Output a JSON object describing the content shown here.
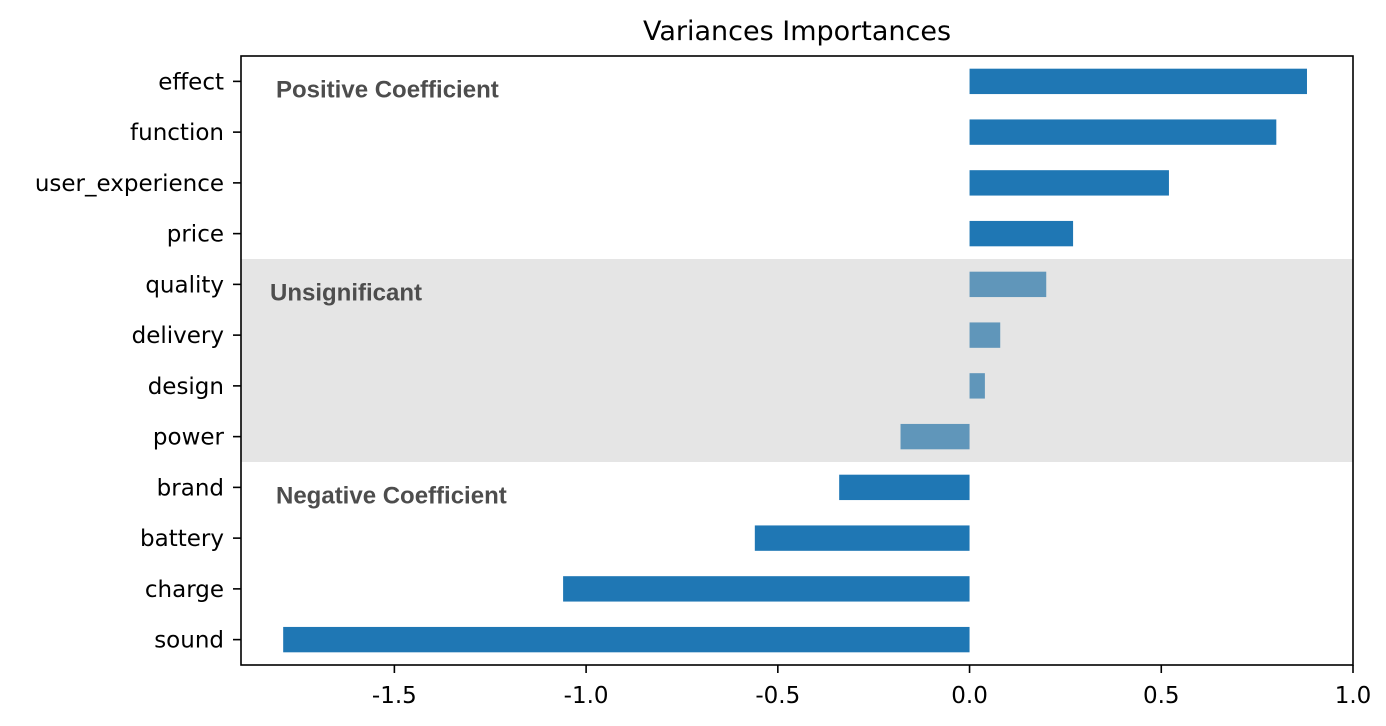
{
  "chart_data": {
    "type": "bar",
    "orientation": "horizontal",
    "title": "Variances Importances",
    "xlabel": "",
    "ylabel": "",
    "xlim": [
      -1.9,
      1.0
    ],
    "x_ticks": [
      -1.5,
      -1.0,
      -0.5,
      0.0,
      0.5,
      1.0
    ],
    "x_tick_labels": [
      "-1.5",
      "-1.0",
      "-0.5",
      "0.0",
      "0.5",
      "1.0"
    ],
    "grid": false,
    "categories": [
      "effect",
      "function",
      "user_experience",
      "price",
      "quality",
      "delivery",
      "design",
      "power",
      "brand",
      "battery",
      "charge",
      "sound"
    ],
    "values": [
      0.88,
      0.8,
      0.52,
      0.27,
      0.2,
      0.08,
      0.04,
      -0.18,
      -0.34,
      -0.56,
      -1.06,
      -1.79
    ],
    "bar_colors": [
      "#1f77b4",
      "#1f77b4",
      "#1f77b4",
      "#1f77b4",
      "#6096ba",
      "#6096ba",
      "#6096ba",
      "#6096ba",
      "#1f77b4",
      "#1f77b4",
      "#1f77b4",
      "#1f77b4"
    ],
    "highlight_band": {
      "from_category": "quality",
      "to_category": "power",
      "color": "#e5e5e5"
    },
    "annotations": [
      {
        "text": "Positive Coefficient",
        "near_category": "effect"
      },
      {
        "text": "Unsignificant",
        "near_category": "quality"
      },
      {
        "text": "Negative Coefficient",
        "near_category": "brand"
      }
    ]
  }
}
